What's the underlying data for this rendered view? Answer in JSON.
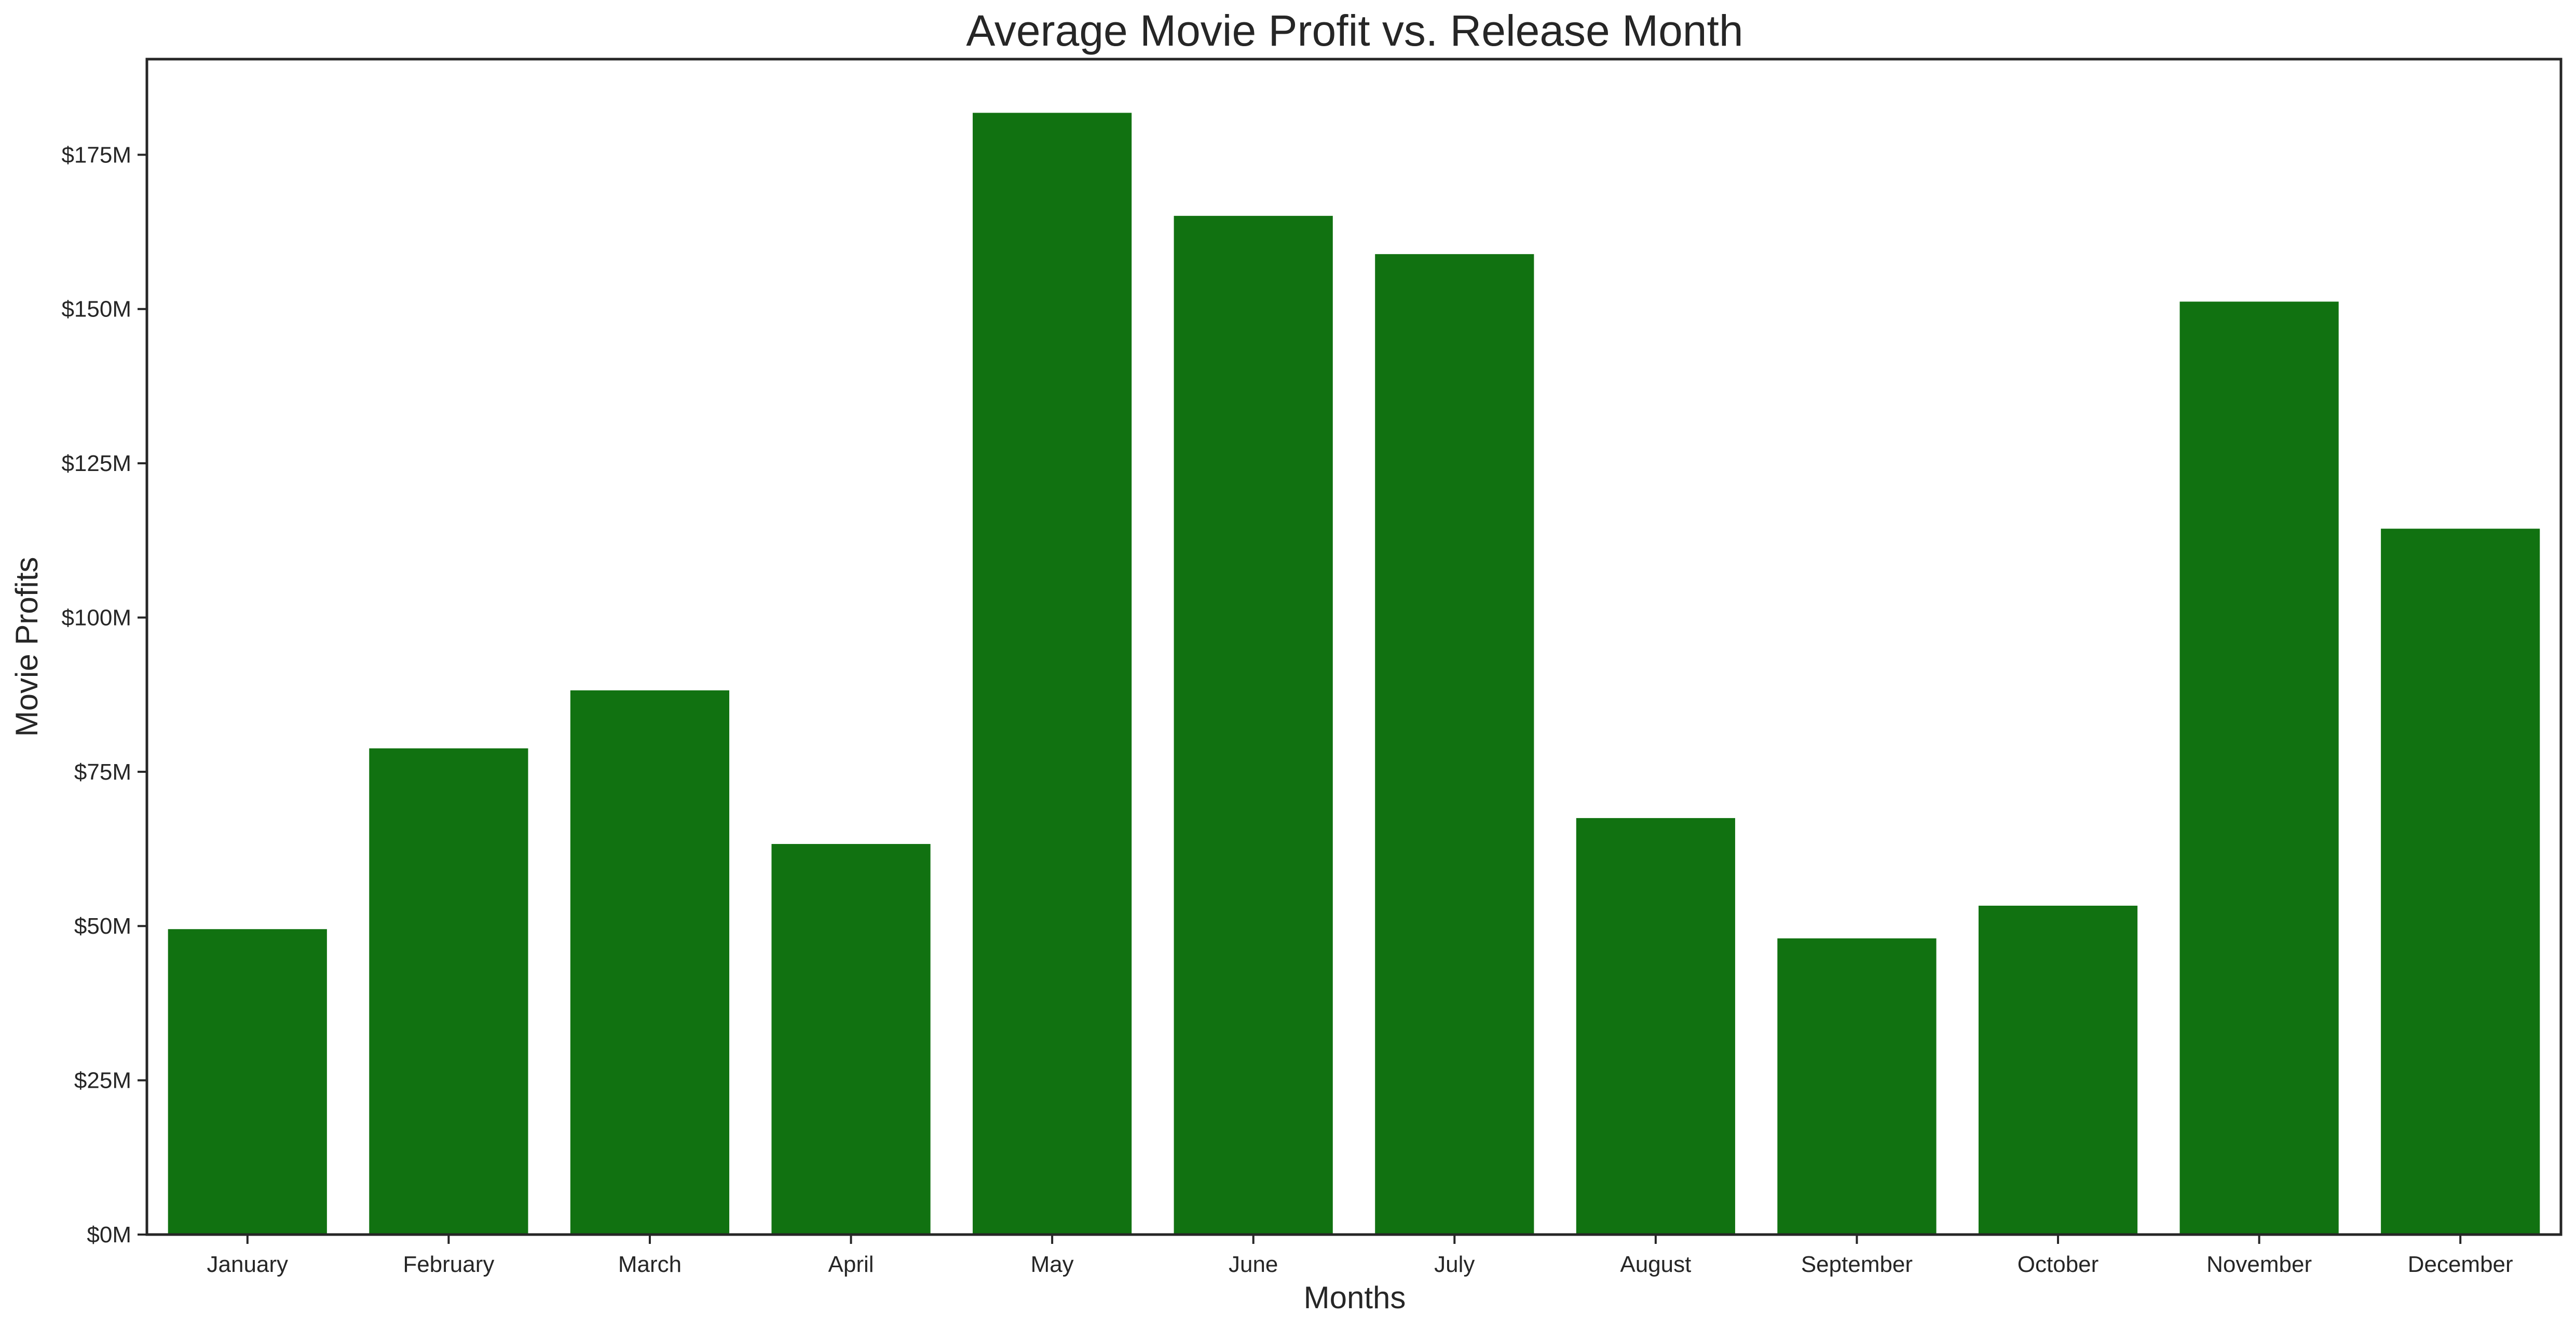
{
  "chart_data": {
    "type": "bar",
    "title": "Average Movie Profit vs. Release Month",
    "xlabel": "Months",
    "ylabel": "Movie Profits",
    "categories": [
      "January",
      "February",
      "March",
      "April",
      "May",
      "June",
      "July",
      "August",
      "September",
      "October",
      "November",
      "December"
    ],
    "values": [
      49.5,
      78.8,
      88.2,
      63.3,
      181.8,
      165.1,
      158.9,
      67.5,
      48.0,
      53.3,
      151.2,
      114.4
    ],
    "value_unit": "$M",
    "ylim": [
      0,
      190.5
    ],
    "yticks": [
      0,
      25,
      50,
      75,
      100,
      125,
      150,
      175
    ],
    "ytick_labels": [
      "$0M",
      "$25M",
      "$50M",
      "$75M",
      "$100M",
      "$125M",
      "$150M",
      "$175M"
    ],
    "bar_color": "#117211",
    "grid": false,
    "legend": "none"
  }
}
